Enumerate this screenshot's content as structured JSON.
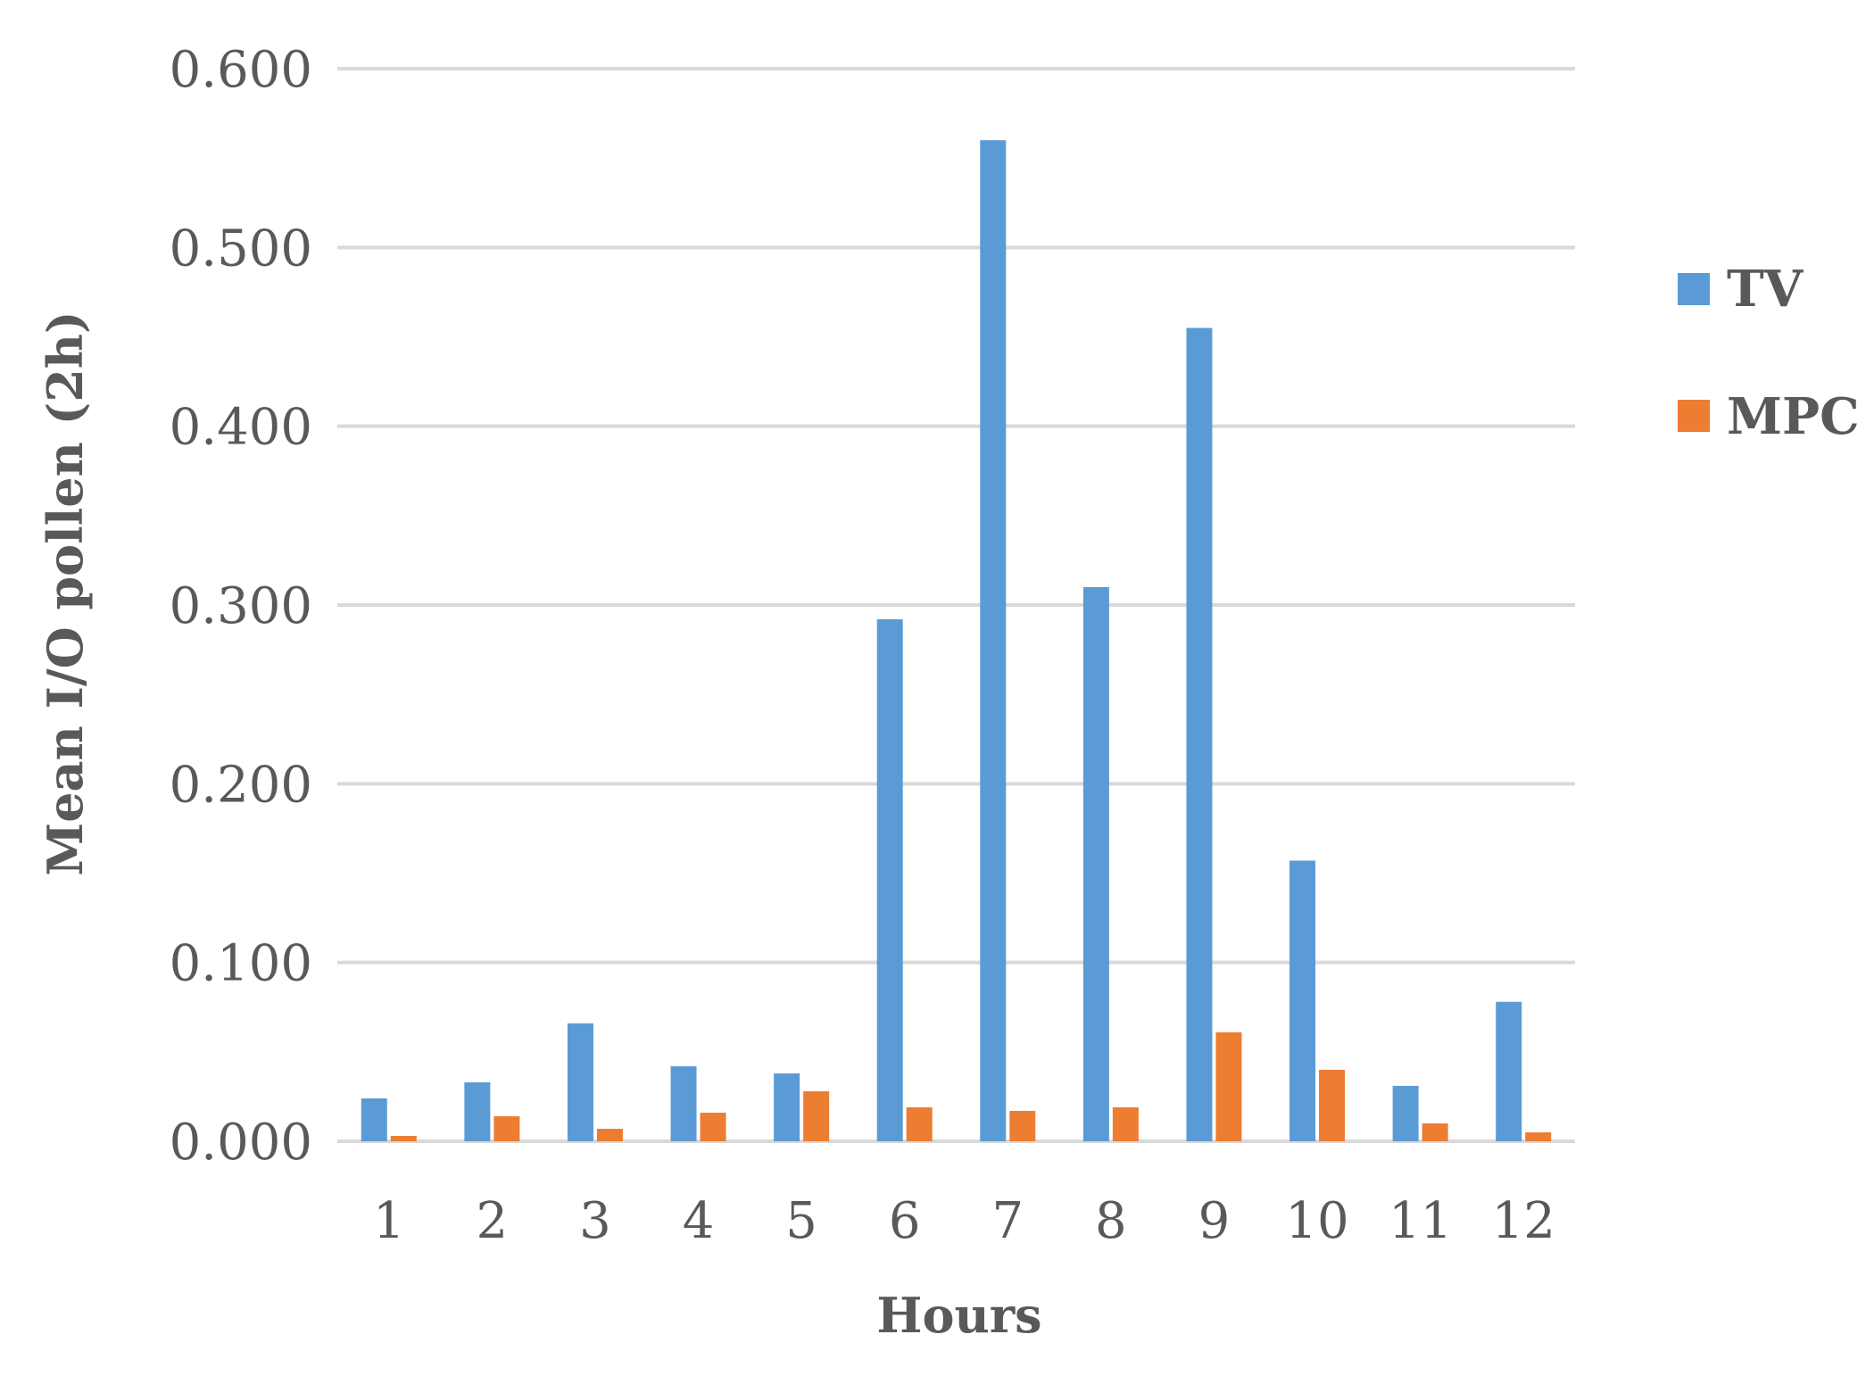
{
  "chart_data": {
    "type": "bar",
    "title": "",
    "xlabel": "Hours",
    "ylabel": "Mean I/O pollen (2h)",
    "categories": [
      "1",
      "2",
      "3",
      "4",
      "5",
      "6",
      "7",
      "8",
      "9",
      "10",
      "11",
      "12"
    ],
    "ylim": [
      0,
      0.6
    ],
    "yticks": [
      "0.000",
      "0.100",
      "0.200",
      "0.300",
      "0.400",
      "0.500",
      "0.600"
    ],
    "grid": true,
    "legend_position": "right",
    "series": [
      {
        "name": "TV",
        "color": "#5b9bd5",
        "values": [
          0.024,
          0.033,
          0.066,
          0.042,
          0.038,
          0.292,
          0.56,
          0.31,
          0.455,
          0.157,
          0.031,
          0.078
        ]
      },
      {
        "name": "MPC",
        "color": "#ed7d31",
        "values": [
          0.003,
          0.014,
          0.007,
          0.016,
          0.028,
          0.019,
          0.017,
          0.019,
          0.061,
          0.04,
          0.01,
          0.005
        ]
      }
    ]
  }
}
